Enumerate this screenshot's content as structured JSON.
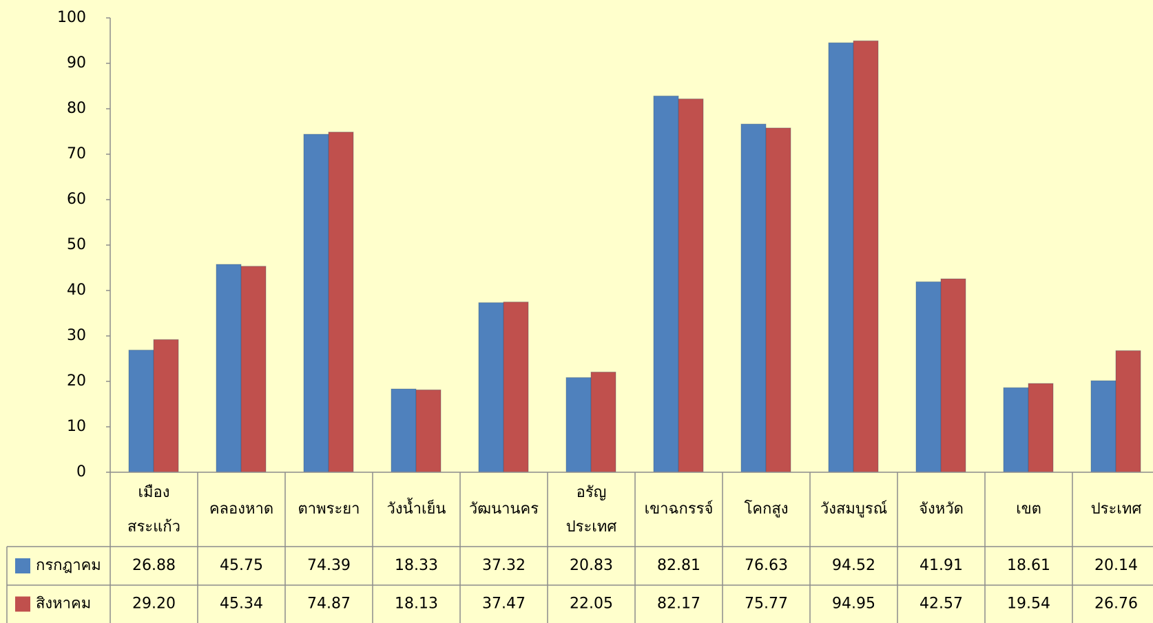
{
  "chart_data": {
    "type": "bar",
    "title": "",
    "xlabel": "",
    "ylabel": "",
    "ylim": [
      0,
      100
    ],
    "yticks": [
      0,
      10,
      20,
      30,
      40,
      50,
      60,
      70,
      80,
      90,
      100
    ],
    "grid": false,
    "legend": "data-table-left",
    "categories": [
      [
        "เมือง",
        "สระแก้ว"
      ],
      [
        "คลองหาด"
      ],
      [
        "ตาพระยา"
      ],
      [
        "วังน้ำเย็น"
      ],
      [
        "วัฒนานคร"
      ],
      [
        "อรัญ",
        "ประเทศ"
      ],
      [
        "เขาฉกรรจ์"
      ],
      [
        "โคกสูง"
      ],
      [
        "วังสมบูรณ์"
      ],
      [
        "จังหวัด"
      ],
      [
        "เขต"
      ],
      [
        "ประเทศ"
      ]
    ],
    "series": [
      {
        "name": "กรกฎาคม",
        "color": "#4f81bd",
        "values": [
          26.88,
          45.75,
          74.39,
          18.33,
          37.32,
          20.83,
          82.81,
          76.63,
          94.52,
          41.91,
          18.61,
          20.14
        ]
      },
      {
        "name": "สิงหาคม",
        "color": "#c0504d",
        "values": [
          29.2,
          45.34,
          74.87,
          18.13,
          37.47,
          22.05,
          82.17,
          75.77,
          94.95,
          42.57,
          19.54,
          26.76
        ]
      }
    ]
  }
}
